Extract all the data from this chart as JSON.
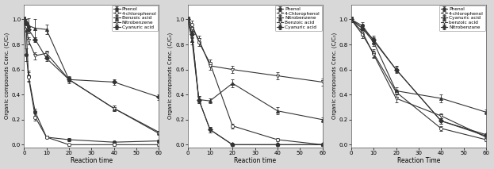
{
  "panel1": {
    "xlabel": "Reaction time",
    "ylabel": "Organic compounds Conc. (C/C₀)",
    "xlim": [
      0,
      60
    ],
    "ylim": [
      -0.02,
      1.12
    ],
    "xticks": [
      0,
      10,
      20,
      30,
      40,
      50,
      60
    ],
    "yticks": [
      0.0,
      0.2,
      0.4,
      0.6,
      0.8,
      1.0
    ],
    "series": [
      {
        "label": "Phenol",
        "x": [
          0,
          1,
          2,
          5,
          10,
          20,
          40,
          60
        ],
        "y": [
          1.0,
          0.72,
          0.55,
          0.26,
          0.06,
          0.04,
          0.02,
          0.03
        ],
        "yerr": [
          0.02,
          0.05,
          0.04,
          0.03,
          0.01,
          0.01,
          0.01,
          0.01
        ],
        "marker": "o",
        "fillstyle": "full",
        "linestyle": "-"
      },
      {
        "label": "4-chlorophenol",
        "x": [
          0,
          1,
          2,
          5,
          10,
          20,
          40,
          60
        ],
        "y": [
          1.0,
          0.93,
          0.54,
          0.22,
          0.06,
          0.0,
          0.0,
          0.0
        ],
        "yerr": [
          0.02,
          0.03,
          0.04,
          0.03,
          0.01,
          0.01,
          0.01,
          0.01
        ],
        "marker": "o",
        "fillstyle": "none",
        "linestyle": "-"
      },
      {
        "label": "Benzoic acid",
        "x": [
          0,
          1,
          2,
          5,
          10,
          20,
          40,
          60
        ],
        "y": [
          1.0,
          0.97,
          0.95,
          0.93,
          0.92,
          0.52,
          0.29,
          0.1
        ],
        "yerr": [
          0.02,
          0.03,
          0.06,
          0.07,
          0.04,
          0.03,
          0.02,
          0.01
        ],
        "marker": "^",
        "fillstyle": "full",
        "linestyle": "-"
      },
      {
        "label": "Nitrobenzene",
        "x": [
          0,
          1,
          2,
          5,
          10,
          20,
          40,
          60
        ],
        "y": [
          1.0,
          0.94,
          0.83,
          0.71,
          0.73,
          0.52,
          0.29,
          0.09
        ],
        "yerr": [
          0.02,
          0.03,
          0.03,
          0.03,
          0.02,
          0.02,
          0.02,
          0.01
        ],
        "marker": "v",
        "fillstyle": "none",
        "linestyle": "-"
      },
      {
        "label": "Cyanuric acid",
        "x": [
          0,
          1,
          2,
          5,
          10,
          20,
          40,
          60
        ],
        "y": [
          1.0,
          0.97,
          0.92,
          0.84,
          0.69,
          0.52,
          0.5,
          0.38
        ],
        "yerr": [
          0.01,
          0.02,
          0.02,
          0.02,
          0.02,
          0.02,
          0.02,
          0.02
        ],
        "marker": "D",
        "fillstyle": "full",
        "linestyle": "-"
      }
    ]
  },
  "panel2": {
    "xlabel": "Reaction time",
    "ylabel": "Organic compounds Conc. (C/C₀)",
    "xlim": [
      0,
      60
    ],
    "ylim": [
      -0.02,
      1.12
    ],
    "xticks": [
      0,
      10,
      20,
      30,
      40,
      50,
      60
    ],
    "yticks": [
      0.0,
      0.2,
      0.4,
      0.6,
      0.8,
      1.0
    ],
    "series": [
      {
        "label": "Phenol",
        "x": [
          0,
          2,
          5,
          10,
          20,
          40,
          60
        ],
        "y": [
          1.0,
          0.88,
          0.36,
          0.12,
          0.0,
          0.0,
          0.0
        ],
        "yerr": [
          0.02,
          0.03,
          0.03,
          0.02,
          0.01,
          0.01,
          0.01
        ],
        "marker": "o",
        "fillstyle": "full",
        "linestyle": "-"
      },
      {
        "label": "4-Chlorophenol",
        "x": [
          0,
          2,
          5,
          10,
          20,
          40,
          60
        ],
        "y": [
          1.0,
          0.96,
          0.82,
          0.65,
          0.15,
          0.04,
          0.0
        ],
        "yerr": [
          0.02,
          0.03,
          0.03,
          0.03,
          0.02,
          0.01,
          0.01
        ],
        "marker": "o",
        "fillstyle": "none",
        "linestyle": "-"
      },
      {
        "label": "Nitrobenzene",
        "x": [
          0,
          2,
          5,
          10,
          20,
          40,
          60
        ],
        "y": [
          1.0,
          0.83,
          0.36,
          0.35,
          0.49,
          0.27,
          0.2
        ],
        "yerr": [
          0.02,
          0.03,
          0.03,
          0.02,
          0.03,
          0.03,
          0.02
        ],
        "marker": "^",
        "fillstyle": "full",
        "linestyle": "-"
      },
      {
        "label": "Benzoic acid",
        "x": [
          0,
          2,
          5,
          10,
          20,
          40,
          60
        ],
        "y": [
          1.0,
          0.93,
          0.84,
          0.63,
          0.6,
          0.55,
          0.5
        ],
        "yerr": [
          0.02,
          0.03,
          0.03,
          0.03,
          0.03,
          0.03,
          0.03
        ],
        "marker": "v",
        "fillstyle": "none",
        "linestyle": "-"
      },
      {
        "label": "Cyanuric acid",
        "x": [
          0,
          2,
          5,
          10,
          20,
          40,
          60
        ],
        "y": [
          1.0,
          0.88,
          0.36,
          0.12,
          0.0,
          0.0,
          0.0
        ],
        "yerr": [
          0.02,
          0.02,
          0.02,
          0.02,
          0.01,
          0.01,
          0.01
        ],
        "marker": "D",
        "fillstyle": "full",
        "linestyle": "-"
      }
    ]
  },
  "panel3": {
    "xlabel": "Reaction Time",
    "ylabel": "Organic compounds Conc. (C/C₀)",
    "xlim": [
      0,
      60
    ],
    "ylim": [
      -0.02,
      1.12
    ],
    "xticks": [
      0,
      10,
      20,
      30,
      40,
      50,
      60
    ],
    "yticks": [
      0.0,
      0.2,
      0.4,
      0.6,
      0.8,
      1.0
    ],
    "series": [
      {
        "label": "Phenol",
        "x": [
          0,
          5,
          10,
          20,
          40,
          60
        ],
        "y": [
          1.0,
          0.95,
          0.83,
          0.6,
          0.19,
          0.07
        ],
        "yerr": [
          0.02,
          0.03,
          0.03,
          0.03,
          0.02,
          0.01
        ],
        "marker": "o",
        "fillstyle": "full",
        "linestyle": "-"
      },
      {
        "label": "4-chlorophenol",
        "x": [
          0,
          5,
          10,
          20,
          40,
          60
        ],
        "y": [
          1.0,
          0.88,
          0.73,
          0.42,
          0.13,
          0.04
        ],
        "yerr": [
          0.02,
          0.03,
          0.03,
          0.02,
          0.02,
          0.01
        ],
        "marker": "o",
        "fillstyle": "none",
        "linestyle": "-"
      },
      {
        "label": "Cyanuric acid",
        "x": [
          0,
          5,
          10,
          20,
          40,
          60
        ],
        "y": [
          1.0,
          0.93,
          0.82,
          0.43,
          0.37,
          0.26
        ],
        "yerr": [
          0.02,
          0.03,
          0.03,
          0.03,
          0.03,
          0.02
        ],
        "marker": "^",
        "fillstyle": "full",
        "linestyle": "-"
      },
      {
        "label": "benzoic acid",
        "x": [
          0,
          5,
          10,
          20,
          40,
          60
        ],
        "y": [
          1.0,
          0.9,
          0.72,
          0.37,
          0.23,
          0.06
        ],
        "yerr": [
          0.02,
          0.03,
          0.03,
          0.03,
          0.02,
          0.01
        ],
        "marker": "v",
        "fillstyle": "none",
        "linestyle": "-"
      },
      {
        "label": "Nitrobenzane",
        "x": [
          0,
          5,
          10,
          20,
          40,
          60
        ],
        "y": [
          1.0,
          0.93,
          0.84,
          0.6,
          0.19,
          0.08
        ],
        "yerr": [
          0.02,
          0.02,
          0.03,
          0.02,
          0.02,
          0.01
        ],
        "marker": "D",
        "fillstyle": "full",
        "linestyle": "-"
      }
    ]
  },
  "figure_bg": "#d8d8d8",
  "panel_bg": "#ffffff",
  "line_color": "#333333"
}
